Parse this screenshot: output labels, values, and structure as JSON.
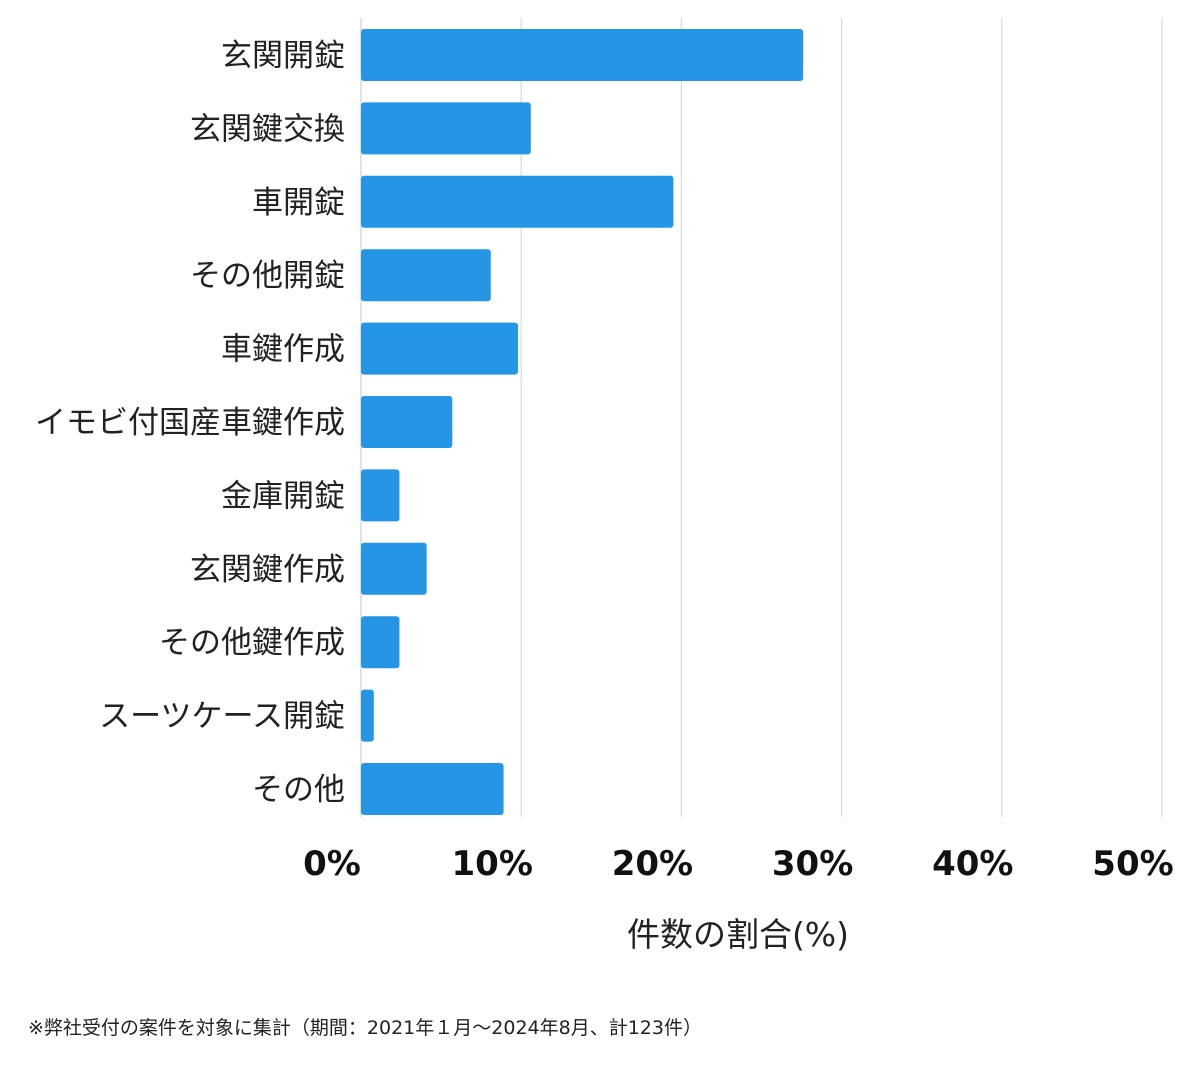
{
  "chart_data": {
    "type": "bar",
    "orientation": "horizontal",
    "categories": [
      "玄関開錠",
      "玄関鍵交換",
      "車開錠",
      "その他開錠",
      "車鍵作成",
      "イモビ付国産車鍵作成",
      "金庫開錠",
      "玄関鍵作成",
      "その他鍵作成",
      "スーツケース開錠",
      "その他"
    ],
    "values": [
      27.6,
      10.6,
      19.5,
      8.1,
      9.8,
      5.7,
      2.4,
      4.1,
      2.4,
      0.8,
      8.9
    ],
    "xlabel": "件数の割合(%)",
    "xlim": [
      0,
      50
    ],
    "xticks": [
      0,
      10,
      20,
      30,
      40,
      50
    ],
    "xtick_labels": [
      "0%",
      "10%",
      "20%",
      "30%",
      "40%",
      "50%"
    ],
    "grid": "vertical",
    "bar_color": "#2595E6",
    "grid_color": "#d9d9d9"
  },
  "footnote": "※弊社受付の案件を対象に集計（期間：2021年１月〜2024年8月、計123件）"
}
